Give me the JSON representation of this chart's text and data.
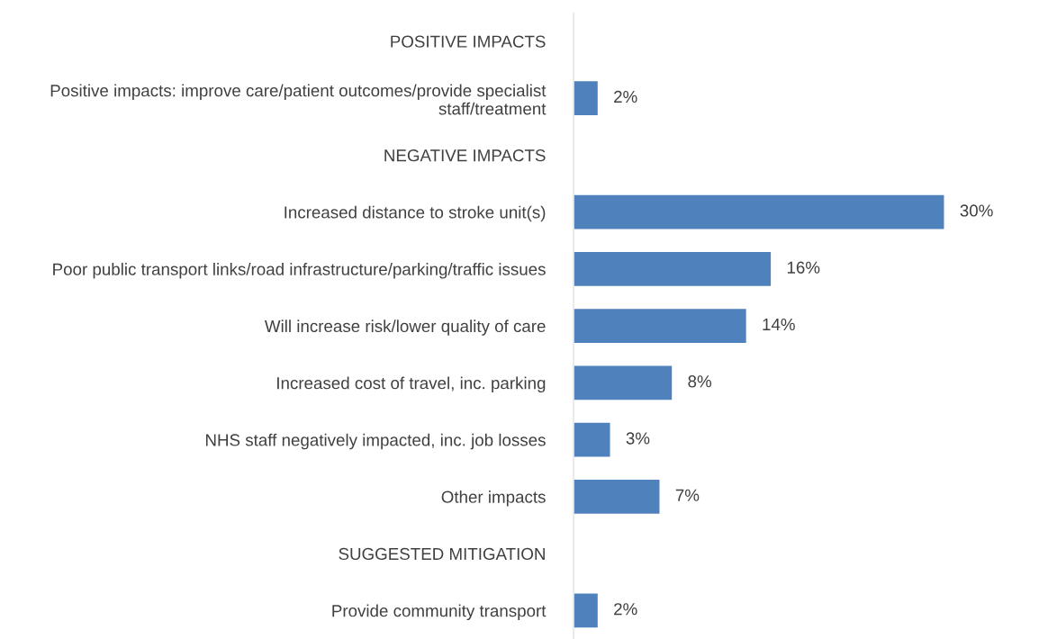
{
  "chart_data": {
    "type": "bar",
    "orientation": "horizontal",
    "categories": [
      "POSITIVE IMPACTS",
      "Positive impacts: improve care/patient outcomes/provide specialist staff/treatment",
      "NEGATIVE IMPACTS",
      "Increased distance to stroke unit(s)",
      "Poor public transport links/road infrastructure/parking/traffic issues",
      "Will increase risk/lower quality of care",
      "Increased cost of travel, inc. parking",
      "NHS staff negatively impacted, inc. job losses",
      "Other impacts",
      "SUGGESTED MITIGATION",
      "Provide community transport"
    ],
    "values": [
      null,
      2,
      null,
      30,
      16,
      14,
      8,
      3,
      7,
      null,
      2
    ],
    "value_labels": [
      null,
      "2%",
      null,
      "30%",
      "16%",
      "14%",
      "8%",
      "3%",
      "7%",
      null,
      "2%"
    ],
    "color": "#4f81bd",
    "tick_labels": "y",
    "grid": false,
    "legend": false
  }
}
